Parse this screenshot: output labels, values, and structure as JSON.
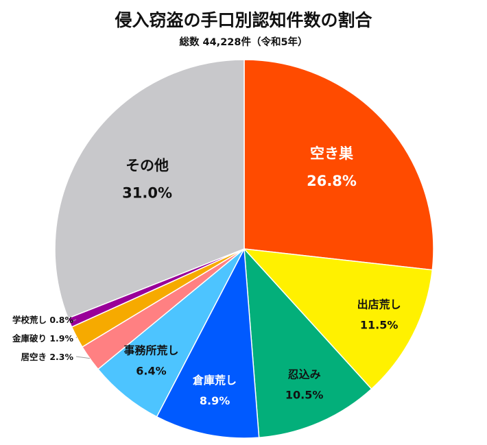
{
  "chart_data": {
    "type": "pie",
    "title": "侵入窃盗の手口別認知件数の割合",
    "subtitle": "総数 44,228件（令和5年）",
    "slices": [
      {
        "name": "空き巣",
        "value": 26.8,
        "label": "26.8%",
        "color": "#FF4B00",
        "text_color": "#FFFFFF",
        "label_style": "inside"
      },
      {
        "name": "出店荒し",
        "value": 11.5,
        "label": "11.5%",
        "color": "#FFF100",
        "text_color": "#111111",
        "label_style": "inside"
      },
      {
        "name": "忍込み",
        "value": 10.5,
        "label": "10.5%",
        "color": "#03AF7A",
        "text_color": "#111111",
        "label_style": "inside"
      },
      {
        "name": "倉庫荒し",
        "value": 8.9,
        "label": "8.9%",
        "color": "#005AFF",
        "text_color": "#FFFFFF",
        "label_style": "inside"
      },
      {
        "name": "事務所荒し",
        "value": 6.4,
        "label": "6.4%",
        "color": "#4DC4FF",
        "text_color": "#111111",
        "label_style": "inside"
      },
      {
        "name": "居空き",
        "value": 2.3,
        "label": "2.3%",
        "color": "#FF8082",
        "text_color": "#111111",
        "label_style": "outside"
      },
      {
        "name": "金庫破り",
        "value": 1.9,
        "label": "1.9%",
        "color": "#F6AA00",
        "text_color": "#111111",
        "label_style": "outside"
      },
      {
        "name": "学校荒し",
        "value": 0.8,
        "label": "0.8%",
        "color": "#990099",
        "text_color": "#111111",
        "label_style": "outside"
      },
      {
        "name": "その他",
        "value": 31.0,
        "label": "31.0%",
        "color": "#C8C8CB",
        "text_color": "#111111",
        "label_style": "inside"
      }
    ],
    "start_angle": "12 o'clock",
    "direction": "clockwise",
    "legend": "none"
  }
}
